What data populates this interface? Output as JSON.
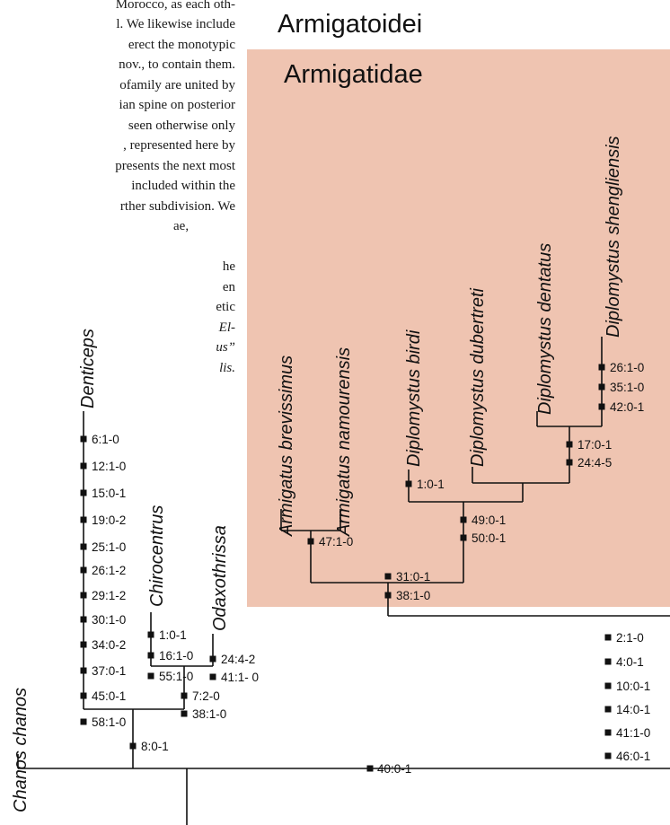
{
  "colors": {
    "clade_box": "#efc4b1",
    "line": "#111111",
    "text": "#111111"
  },
  "background_text": {
    "lines": [
      "Morocco, as each oth-",
      "l. We likewise include",
      "erect the monotypic",
      "nov., to contain them.",
      "ofamily are united by",
      "ian spine on posterior",
      "seen otherwise only",
      ", represented here by",
      "presents the next most",
      "included within the",
      "rther subdivision. We",
      "ae,",
      "he",
      "en",
      "etic",
      "El-",
      "us”",
      "lis."
    ]
  },
  "clades": {
    "suborder": "Armigatoidei",
    "family": "Armigatidae"
  },
  "taxa": {
    "chanos": "Chanos chanos",
    "denticeps": "Denticeps",
    "chirocentrus": "Chirocentrus",
    "odaxothrissa": "Odaxothrissa",
    "armigatus_brevissimus": "Armigatus brevissimus",
    "armigatus_namourensis": "Armigatus namourensis",
    "diplomystus_birdi": "Diplomystus birdi",
    "diplomystus_dubertreti": "Diplomystus dubertreti",
    "diplomystus_dentatus": "Diplomystus dentatus",
    "diplomystus_shengliensis": "Diplomystus shengliensis"
  },
  "changes": {
    "denticeps": [
      "6:1-0",
      "12:1-0",
      "15:0-1",
      "19:0-2",
      "25:1-0",
      "26:1-2",
      "29:1-2",
      "30:1-0",
      "34:0-2",
      "37:0-1",
      "45:0-1",
      "58:1-0"
    ],
    "chirocentrus": [
      "1:0-1",
      "16:1-0",
      "55:1-0"
    ],
    "odaxothrissa": [
      "24:4-2",
      "41:1- 0"
    ],
    "chiro_odax": [
      "7:2-0",
      "38:1-0"
    ],
    "clupeomorph_node": [
      "8:0-1"
    ],
    "root": [
      "40:0-1"
    ],
    "armigatus": [
      "47:1-0"
    ],
    "d_birdi": [
      "1:0-1"
    ],
    "d_shengliensis": [
      "26:1-0",
      "35:1-0",
      "42:0-1"
    ],
    "dentatus_shengliensis": [
      "17:0-1",
      "24:4-5"
    ],
    "diplomystus": [
      "49:0-1",
      "50:0-1"
    ],
    "armigatidae": [
      "31:0-1",
      "38:1-0"
    ],
    "armigatoidei": [
      "2:1-0",
      "4:0-1",
      "10:0-1",
      "14:0-1",
      "41:1-0",
      "46:0-1"
    ]
  }
}
